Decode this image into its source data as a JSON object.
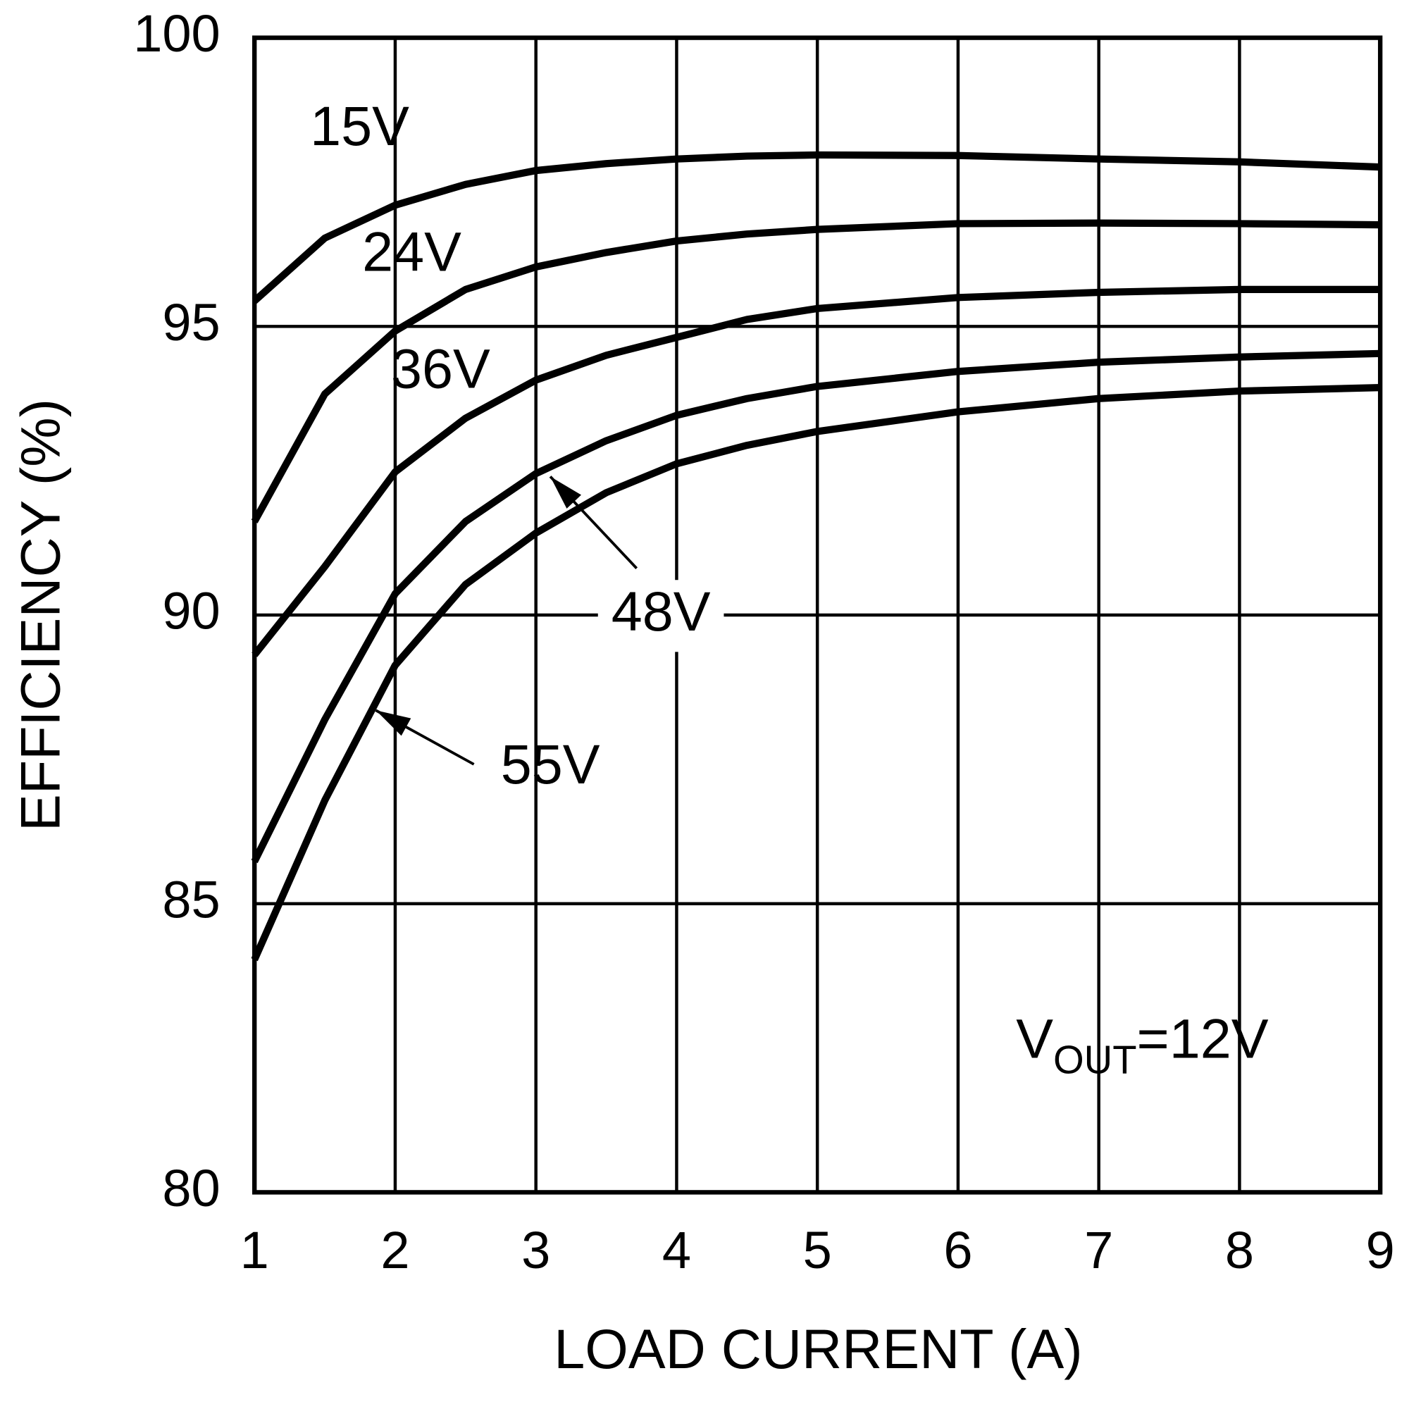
{
  "chart_data": {
    "type": "line",
    "x_label": "LOAD CURRENT (A)",
    "y_label": "EFFICIENCY (%)",
    "annotation": {
      "main": "V",
      "sub": "OUT",
      "rest": "=12V"
    },
    "x": [
      1,
      1.5,
      2,
      2.5,
      3,
      3.5,
      4,
      4.5,
      5,
      6,
      7,
      8,
      9
    ],
    "series": [
      {
        "name": "15V",
        "color": "#000000",
        "values": [
          95.44,
          96.53,
          97.1,
          97.46,
          97.7,
          97.82,
          97.9,
          97.95,
          97.97,
          97.96,
          97.9,
          97.85,
          97.76
        ]
      },
      {
        "name": "24V",
        "color": "#000000",
        "values": [
          91.62,
          93.83,
          94.92,
          95.64,
          96.03,
          96.28,
          96.48,
          96.6,
          96.68,
          96.78,
          96.79,
          96.78,
          96.76
        ]
      },
      {
        "name": "36V",
        "color": "#000000",
        "values": [
          89.31,
          90.84,
          92.48,
          93.41,
          94.07,
          94.5,
          94.81,
          95.12,
          95.31,
          95.5,
          95.59,
          95.64,
          95.64
        ]
      },
      {
        "name": "48V",
        "color": "#000000",
        "values": [
          85.73,
          88.19,
          90.37,
          91.62,
          92.45,
          93.02,
          93.46,
          93.75,
          93.96,
          94.22,
          94.38,
          94.47,
          94.53
        ]
      },
      {
        "name": "55V",
        "color": "#000000",
        "values": [
          84.03,
          86.79,
          89.13,
          90.53,
          91.42,
          92.12,
          92.62,
          92.94,
          93.18,
          93.52,
          93.75,
          93.88,
          93.94
        ]
      }
    ],
    "xlim": [
      1,
      9
    ],
    "xticks": [
      1,
      2,
      3,
      4,
      5,
      6,
      7,
      8,
      9
    ],
    "ylim": [
      80,
      100
    ],
    "yticks": [
      80,
      85,
      90,
      95,
      100
    ],
    "grid": true
  }
}
